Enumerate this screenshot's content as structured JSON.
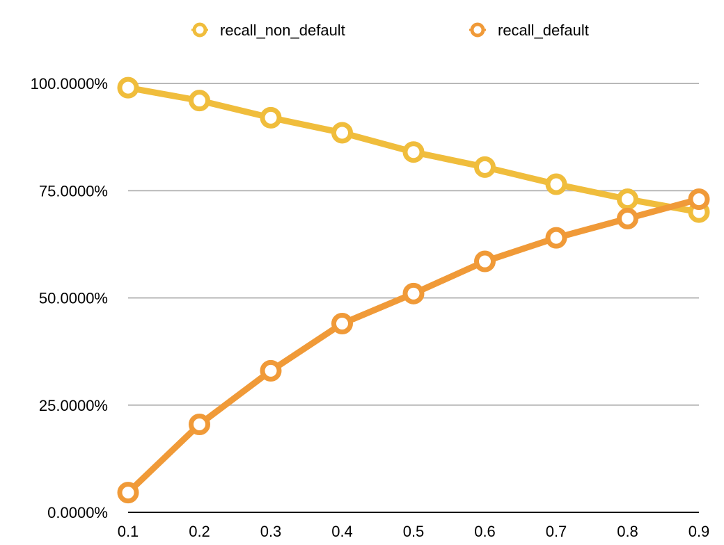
{
  "chart_data": {
    "type": "line",
    "title": "",
    "xlabel": "",
    "ylabel": "",
    "x": [
      0.1,
      0.2,
      0.3,
      0.4,
      0.5,
      0.6,
      0.7,
      0.8,
      0.9
    ],
    "x_tick_labels": [
      "0.1",
      "0.2",
      "0.3",
      "0.4",
      "0.5",
      "0.6",
      "0.7",
      "0.8",
      "0.9"
    ],
    "y_ticks": [
      0,
      25,
      50,
      75,
      100
    ],
    "y_tick_labels": [
      "0.0000%",
      "25.0000%",
      "50.0000%",
      "75.0000%",
      "100.0000%"
    ],
    "ylim": [
      0,
      100
    ],
    "grid": "horizontal",
    "legend_position": "top-center",
    "series": [
      {
        "name": "recall_non_default",
        "color": "#F0BD3C",
        "values": [
          99.0,
          96.0,
          92.0,
          88.5,
          84.0,
          80.5,
          76.5,
          73.0,
          70.0
        ]
      },
      {
        "name": "recall_default",
        "color": "#F09A38",
        "values": [
          4.6,
          20.5,
          33.0,
          44.0,
          51.0,
          58.5,
          64.0,
          68.5,
          73.0
        ]
      }
    ]
  }
}
